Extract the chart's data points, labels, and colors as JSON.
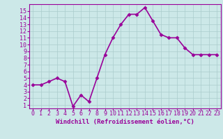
{
  "x": [
    0,
    1,
    2,
    3,
    4,
    5,
    6,
    7,
    8,
    9,
    10,
    11,
    12,
    13,
    14,
    15,
    16,
    17,
    18,
    19,
    20,
    21,
    22,
    23
  ],
  "y": [
    4,
    4,
    4.5,
    5,
    4.5,
    0.8,
    2.5,
    1.5,
    5,
    8.5,
    11,
    13,
    14.5,
    14.5,
    15.5,
    13.5,
    11.5,
    11,
    11,
    9.5,
    8.5,
    8.5,
    8.5,
    8.5
  ],
  "line_color": "#990099",
  "marker": "D",
  "marker_size": 2.5,
  "bg_color": "#cce8e8",
  "grid_color": "#aacccc",
  "xlabel": "Windchill (Refroidissement éolien,°C)",
  "xlim": [
    -0.5,
    23.5
  ],
  "ylim": [
    0.5,
    16
  ],
  "xticks": [
    0,
    1,
    2,
    3,
    4,
    5,
    6,
    7,
    8,
    9,
    10,
    11,
    12,
    13,
    14,
    15,
    16,
    17,
    18,
    19,
    20,
    21,
    22,
    23
  ],
  "yticks": [
    1,
    2,
    3,
    4,
    5,
    6,
    7,
    8,
    9,
    10,
    11,
    12,
    13,
    14,
    15
  ],
  "tick_color": "#990099",
  "label_color": "#990099",
  "font_size": 6,
  "xlabel_fontsize": 6.5,
  "linewidth": 1.2
}
